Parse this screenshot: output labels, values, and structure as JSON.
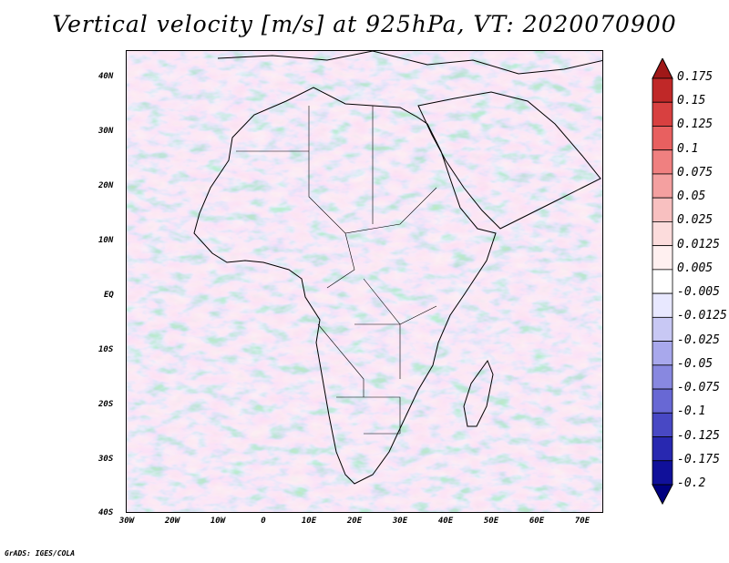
{
  "title": "Vertical velocity [m/s] at 925hPa, VT: 2020070900",
  "credit": "GrADS: IGES/COLA",
  "map": {
    "projection": "lat-lon",
    "lon_range": [
      -30,
      75
    ],
    "lat_range": [
      -40,
      45
    ],
    "lat_ticks": [
      {
        "value": 40,
        "label": "40N"
      },
      {
        "value": 30,
        "label": "30N"
      },
      {
        "value": 20,
        "label": "20N"
      },
      {
        "value": 10,
        "label": "10N"
      },
      {
        "value": 0,
        "label": "EQ"
      },
      {
        "value": -10,
        "label": "10S"
      },
      {
        "value": -20,
        "label": "20S"
      },
      {
        "value": -30,
        "label": "30S"
      },
      {
        "value": -40,
        "label": "40S"
      }
    ],
    "lon_ticks": [
      {
        "value": -30,
        "label": "30W"
      },
      {
        "value": -20,
        "label": "20W"
      },
      {
        "value": -10,
        "label": "10W"
      },
      {
        "value": 0,
        "label": "0"
      },
      {
        "value": 10,
        "label": "10E"
      },
      {
        "value": 20,
        "label": "20E"
      },
      {
        "value": 30,
        "label": "30E"
      },
      {
        "value": 40,
        "label": "40E"
      },
      {
        "value": 50,
        "label": "50E"
      },
      {
        "value": 60,
        "label": "60E"
      },
      {
        "value": 70,
        "label": "70E"
      }
    ],
    "field_colors": {
      "positive": "#e88070",
      "negative": "#7070d8",
      "neutral": "#f8f0f0"
    }
  },
  "colorbar": {
    "levels": [
      "0.175",
      "0.15",
      "0.125",
      "0.1",
      "0.075",
      "0.05",
      "0.025",
      "0.0125",
      "0.005",
      "-0.005",
      "-0.0125",
      "-0.025",
      "-0.05",
      "-0.075",
      "-0.1",
      "-0.125",
      "-0.175",
      "-0.2"
    ],
    "colors": [
      "#a01818",
      "#c02828",
      "#d84040",
      "#e86060",
      "#f08080",
      "#f4a0a0",
      "#f8c0c0",
      "#fcdcdc",
      "#fff0f0",
      "#ffffff",
      "#e8e8ff",
      "#c8c8f4",
      "#a8a8ec",
      "#8888e0",
      "#6868d4",
      "#4848c4",
      "#2828b0",
      "#10109a",
      "#000080"
    ]
  }
}
